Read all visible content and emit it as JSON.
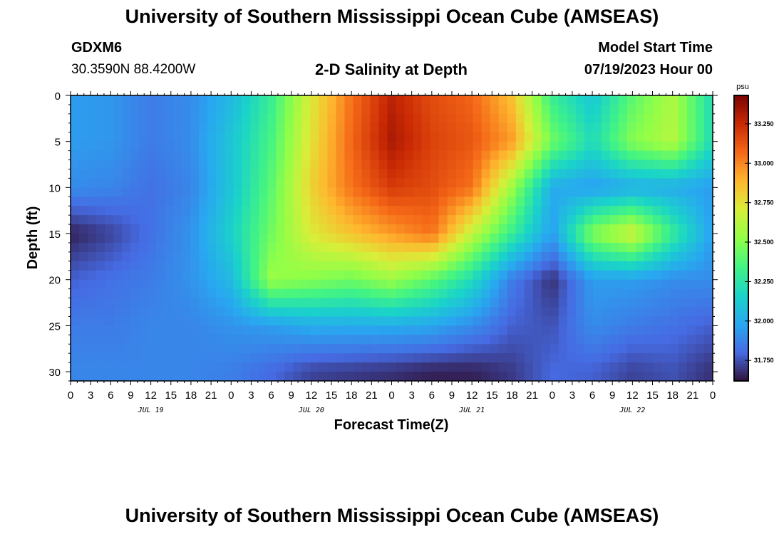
{
  "header": {
    "title": "University of Southern Mississippi Ocean Cube (AMSEAS)",
    "station_id": "GDXM6",
    "location": "30.3590N  88.4200W",
    "plot_title": "2-D Salinity at Depth",
    "model_start_label": "Model Start Time",
    "model_start_value": "07/19/2023 Hour 00"
  },
  "footer": {
    "title": "University of Southern Mississippi Ocean Cube (AMSEAS)"
  },
  "chart_data": {
    "type": "heatmap",
    "xlabel": "Forecast Time(Z)",
    "ylabel": "Depth (ft)",
    "x_hours_range": [
      0,
      96
    ],
    "ylim": [
      0,
      31
    ],
    "y_inverted": true,
    "x_tick_labels": [
      "0",
      "3",
      "6",
      "9",
      "12",
      "15",
      "18",
      "21",
      "0",
      "3",
      "6",
      "9",
      "12",
      "15",
      "18",
      "21",
      "0",
      "3",
      "6",
      "9",
      "12",
      "15",
      "18",
      "21",
      "0",
      "3",
      "6",
      "9",
      "12",
      "15",
      "18",
      "21",
      "0"
    ],
    "date_labels": [
      "JUL 19",
      "JUL 20",
      "JUL 21",
      "JUL 22"
    ],
    "y_ticks": [
      0,
      5,
      10,
      15,
      20,
      25,
      30
    ],
    "colorbar": {
      "unit": "psu",
      "range": [
        31.62,
        33.43
      ],
      "ticks": [
        31.75,
        32.0,
        32.25,
        32.5,
        32.75,
        33.0,
        33.25
      ],
      "tick_labels": [
        "31.750",
        "32.000",
        "32.250",
        "32.500",
        "32.750",
        "33.000",
        "33.250"
      ],
      "colormap": "turbo"
    },
    "time_hours": [
      0,
      6,
      12,
      18,
      24,
      30,
      36,
      42,
      48,
      54,
      60,
      66,
      72,
      78,
      84,
      90,
      96
    ],
    "depth_ft": [
      0,
      5,
      10,
      15,
      20,
      25,
      30
    ],
    "salinity_psu": [
      [
        31.95,
        31.93,
        31.85,
        31.9,
        32.05,
        32.3,
        32.72,
        33.05,
        33.28,
        33.15,
        33.08,
        32.85,
        32.3,
        32.1,
        32.4,
        32.6,
        32.2
      ],
      [
        31.95,
        31.93,
        31.85,
        31.9,
        32.1,
        32.35,
        32.75,
        33.08,
        33.32,
        33.18,
        33.12,
        32.95,
        32.45,
        32.2,
        32.5,
        32.62,
        32.2
      ],
      [
        31.9,
        31.88,
        31.82,
        31.88,
        32.1,
        32.4,
        32.8,
        33.05,
        33.2,
        33.15,
        33.05,
        32.55,
        32.0,
        31.95,
        32.0,
        32.0,
        31.95
      ],
      [
        31.65,
        31.72,
        31.82,
        31.92,
        32.15,
        32.45,
        32.72,
        32.85,
        32.95,
        33.05,
        32.65,
        32.3,
        31.95,
        32.5,
        32.7,
        32.3,
        31.95
      ],
      [
        31.78,
        31.82,
        31.85,
        31.92,
        32.05,
        32.55,
        32.5,
        32.45,
        32.55,
        32.4,
        32.2,
        31.85,
        31.68,
        31.95,
        31.95,
        31.9,
        31.9
      ],
      [
        31.85,
        31.85,
        31.88,
        31.88,
        31.92,
        31.95,
        32.0,
        32.0,
        32.0,
        31.98,
        31.9,
        31.78,
        31.75,
        31.9,
        31.85,
        31.82,
        31.78
      ],
      [
        31.88,
        31.88,
        31.88,
        31.88,
        31.86,
        31.8,
        31.72,
        31.7,
        31.68,
        31.65,
        31.65,
        31.7,
        31.8,
        31.78,
        31.72,
        31.75,
        31.68
      ]
    ]
  }
}
